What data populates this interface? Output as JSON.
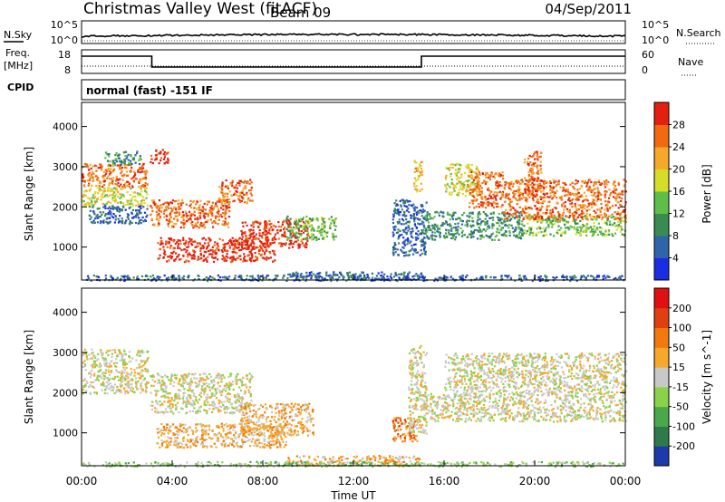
{
  "header": {
    "station": "Christmas Valley West (fitACF)",
    "beam": "Beam 09",
    "date": "04/Sep/2011"
  },
  "noise_panel": {
    "left_label": "N.Sky",
    "left_ticks": [
      "10^5",
      "10^0"
    ],
    "right_label": "N.Search",
    "right_ticks": [
      "10^5",
      "10^0"
    ]
  },
  "freq_panel": {
    "left_label_1": "Freq.",
    "left_label_2": "[MHz]",
    "left_ticks": [
      "18",
      "8"
    ],
    "right_label": "Nave",
    "right_ticks": [
      "60",
      "0"
    ]
  },
  "cpid": {
    "label": "CPID",
    "value": "normal (fast) -151 IF"
  },
  "chart_data": [
    {
      "type": "heatmap",
      "name": "power",
      "ylabel": "Slant Range [km]",
      "yticks": [
        "4000",
        "3000",
        "2000",
        "1000"
      ],
      "ylim": [
        180,
        4600
      ],
      "xlim": [
        0,
        24
      ],
      "colorbar": {
        "label": "Power [dB]",
        "ticks": [
          "28",
          "24",
          "20",
          "16",
          "12",
          "8",
          "4"
        ],
        "colors": [
          "#1a2de0",
          "#2f64a8",
          "#3a8a52",
          "#5fbe48",
          "#d6dc2a",
          "#f5a82a",
          "#f06a10",
          "#e32010"
        ]
      },
      "bands": [
        {
          "t0": 0.0,
          "t1": 2.9,
          "r0": 2500,
          "r1": 3100,
          "level": 6
        },
        {
          "t0": 0.0,
          "t1": 2.9,
          "r0": 2050,
          "r1": 2500,
          "level": 4
        },
        {
          "t0": 0.3,
          "t1": 2.9,
          "r0": 1600,
          "r1": 2050,
          "level": 1
        },
        {
          "t0": 1.0,
          "t1": 2.6,
          "r0": 3050,
          "r1": 3400,
          "level": 2
        },
        {
          "t0": 3.0,
          "t1": 6.5,
          "r0": 1500,
          "r1": 2200,
          "level": 6
        },
        {
          "t0": 6.0,
          "t1": 7.5,
          "r0": 2100,
          "r1": 2700,
          "level": 6
        },
        {
          "t0": 3.0,
          "t1": 3.8,
          "r0": 3100,
          "r1": 3450,
          "level": 7
        },
        {
          "t0": 3.3,
          "t1": 8.5,
          "r0": 650,
          "r1": 1250,
          "level": 7
        },
        {
          "t0": 7.0,
          "t1": 10.0,
          "r0": 1000,
          "r1": 1700,
          "level": 7
        },
        {
          "t0": 9.0,
          "t1": 11.2,
          "r0": 1200,
          "r1": 1800,
          "level": 3
        },
        {
          "t0": 13.7,
          "t1": 15.2,
          "r0": 800,
          "r1": 2200,
          "level": 1
        },
        {
          "t0": 14.6,
          "t1": 15.0,
          "r0": 2400,
          "r1": 3200,
          "level": 5
        },
        {
          "t0": 15.0,
          "t1": 19.5,
          "r0": 1200,
          "r1": 1900,
          "level": 2
        },
        {
          "t0": 19.5,
          "t1": 24.0,
          "r0": 1300,
          "r1": 1800,
          "level": 3
        },
        {
          "t0": 16.0,
          "t1": 17.5,
          "r0": 2300,
          "r1": 3100,
          "level": 4
        },
        {
          "t0": 17.0,
          "t1": 18.6,
          "r0": 2000,
          "r1": 2900,
          "level": 6
        },
        {
          "t0": 18.6,
          "t1": 24.0,
          "r0": 1700,
          "r1": 2700,
          "level": 6
        },
        {
          "t0": 19.5,
          "t1": 20.3,
          "r0": 2400,
          "r1": 3400,
          "level": 6
        },
        {
          "t0": 9.0,
          "t1": 15.0,
          "r0": 200,
          "r1": 400,
          "level": 1
        },
        {
          "t0": 0.0,
          "t1": 24.0,
          "r0": 180,
          "r1": 320,
          "level": 1
        }
      ]
    },
    {
      "type": "heatmap",
      "name": "velocity",
      "ylabel": "Slant Range [km]",
      "yticks": [
        "4000",
        "3000",
        "2000",
        "1000"
      ],
      "ylim": [
        180,
        4600
      ],
      "xlim": [
        0,
        24
      ],
      "colorbar": {
        "label": "Velocity [m s^-1]",
        "ticks": [
          "200",
          "100",
          "50",
          "15",
          "-15",
          "-50",
          "-100",
          "-200"
        ],
        "colors": [
          "#1e3aa8",
          "#2f7a4a",
          "#4aa84a",
          "#8ad24a",
          "#c8c8c8",
          "#f5a82a",
          "#f07a10",
          "#e04010",
          "#e01010"
        ]
      },
      "bands": [
        {
          "t0": 0.0,
          "t1": 2.9,
          "r0": 2000,
          "r1": 3100,
          "level": 4
        },
        {
          "t0": 3.0,
          "t1": 7.5,
          "r0": 1500,
          "r1": 2500,
          "level": 4
        },
        {
          "t0": 3.3,
          "t1": 9.0,
          "r0": 650,
          "r1": 1250,
          "level": 5
        },
        {
          "t0": 7.0,
          "t1": 10.2,
          "r0": 950,
          "r1": 1750,
          "level": 5
        },
        {
          "t0": 13.7,
          "t1": 14.8,
          "r0": 800,
          "r1": 1400,
          "level": 6
        },
        {
          "t0": 14.4,
          "t1": 15.2,
          "r0": 1000,
          "r1": 3200,
          "level": 4
        },
        {
          "t0": 15.0,
          "t1": 24.0,
          "r0": 1300,
          "r1": 2000,
          "level": 4
        },
        {
          "t0": 16.0,
          "t1": 24.0,
          "r0": 2000,
          "r1": 3000,
          "level": 4
        },
        {
          "t0": 9.0,
          "t1": 15.0,
          "r0": 200,
          "r1": 450,
          "level": 5
        },
        {
          "t0": 0.0,
          "t1": 24.0,
          "r0": 180,
          "r1": 300,
          "level": 3
        }
      ]
    }
  ],
  "xaxis": {
    "label": "Time UT",
    "ticks": [
      "00:00",
      "04:00",
      "08:00",
      "12:00",
      "16:00",
      "20:00",
      "00:00"
    ]
  }
}
